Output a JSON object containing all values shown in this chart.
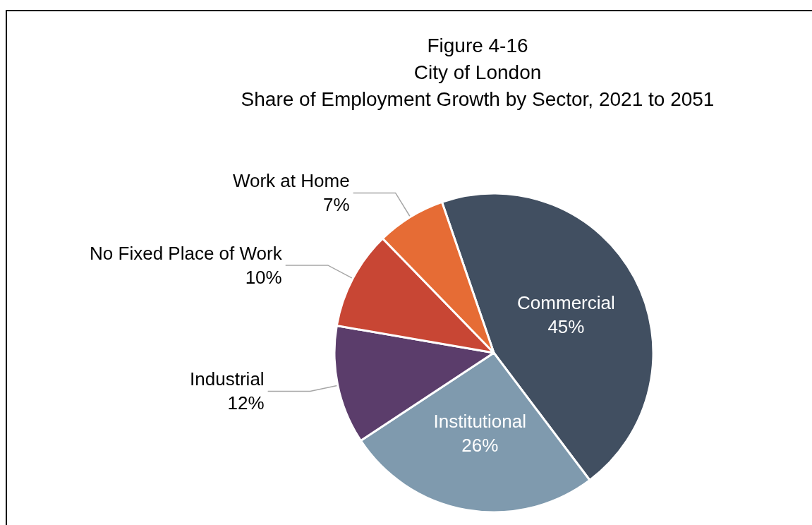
{
  "chart_data": {
    "type": "pie",
    "title": "Figure 4-16\nCity of London\nShare of Employment Growth by Sector, 2021 to 2051",
    "categories": [
      "Commercial",
      "Institutional",
      "Industrial",
      "No Fixed Place of Work",
      "Work at Home"
    ],
    "values": [
      45,
      26,
      12,
      10,
      7
    ],
    "colors": [
      "#414f61",
      "#7f9aae",
      "#5b3d6b",
      "#c84634",
      "#e66c35"
    ],
    "value_labels": [
      "45%",
      "26%",
      "12%",
      "10%",
      "7%"
    ]
  }
}
